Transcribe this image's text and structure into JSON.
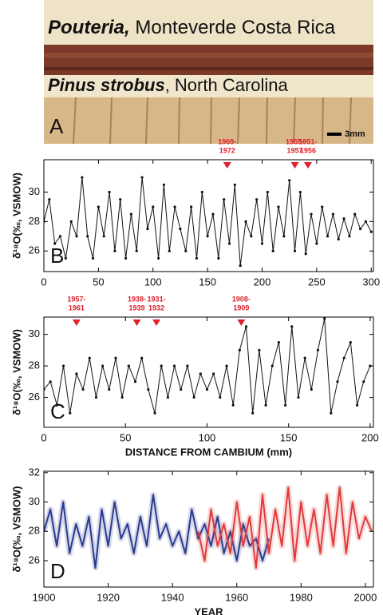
{
  "photo": {
    "label": "A",
    "species_1": "Pouteria,",
    "location_1": " Monteverde Costa Rica",
    "species_2": "Pinus strobus",
    "location_2": ", North Carolina",
    "scale": "3mm"
  },
  "chart_data": [
    {
      "type": "line",
      "panel_label": "B",
      "y_label": "δ¹⁸O(‰, VSMOW)",
      "xlim": [
        0,
        302
      ],
      "ylim": [
        24.6,
        32.2
      ],
      "xticks": [
        0,
        50,
        100,
        150,
        200,
        250,
        300
      ],
      "yticks": [
        26,
        28,
        30
      ],
      "annotations": [
        {
          "text": [
            "1969-",
            "1972"
          ],
          "x": 168,
          "color": "#e0202a"
        },
        {
          "text": [
            "1955-",
            "1957"
          ],
          "x": 230,
          "color": "#e0202a"
        },
        {
          "text": [
            "1951-",
            "1956"
          ],
          "x": 242,
          "color": "#e0202a"
        }
      ],
      "series": [
        {
          "color": "#111111",
          "markers": true,
          "x": [
            0,
            5,
            10,
            15,
            20,
            25,
            30,
            35,
            40,
            45,
            50,
            55,
            60,
            65,
            70,
            75,
            80,
            85,
            90,
            95,
            100,
            105,
            110,
            115,
            120,
            125,
            130,
            135,
            140,
            145,
            150,
            155,
            160,
            165,
            170,
            175,
            180,
            185,
            190,
            195,
            200,
            205,
            210,
            215,
            220,
            225,
            230,
            235,
            240,
            245,
            250,
            255,
            260,
            265,
            270,
            275,
            280,
            285,
            290,
            295,
            300
          ],
          "values": [
            28,
            29.5,
            26.5,
            27,
            25.5,
            28,
            27,
            31,
            27,
            25.5,
            29,
            27,
            30,
            26,
            29.5,
            25.5,
            28.5,
            26,
            31,
            27.5,
            29,
            25.5,
            30.5,
            26,
            29,
            27.5,
            26,
            29,
            25.5,
            30,
            27,
            28.5,
            25.5,
            29.5,
            26.5,
            30.5,
            25,
            28,
            27,
            29.5,
            26.5,
            30,
            26,
            29,
            27,
            30.8,
            26,
            30,
            25.8,
            28.5,
            26.5,
            29,
            27,
            28.5,
            26.8,
            28.2,
            27,
            28.5,
            27.5,
            28,
            27.3
          ]
        }
      ]
    },
    {
      "type": "line",
      "panel_label": "C",
      "y_label": "δ¹⁸O(‰, VSMOW)",
      "x_label": "DISTANCE FROM CAMBIUM (mm)",
      "xlim": [
        0,
        202
      ],
      "ylim": [
        24.1,
        31.1
      ],
      "xticks": [
        0,
        50,
        100,
        150,
        200
      ],
      "yticks": [
        26,
        28,
        30
      ],
      "annotations": [
        {
          "text": [
            "1957-",
            "1961"
          ],
          "x": 20,
          "color": "#e0202a"
        },
        {
          "text": [
            "1938-",
            "1939"
          ],
          "x": 57,
          "color": "#e0202a"
        },
        {
          "text": [
            "1931-",
            "1932"
          ],
          "x": 69,
          "color": "#e0202a"
        },
        {
          "text": [
            "1908-",
            "1909"
          ],
          "x": 121,
          "color": "#e0202a"
        }
      ],
      "series": [
        {
          "color": "#111111",
          "markers": true,
          "x": [
            0,
            4,
            8,
            12,
            16,
            20,
            24,
            28,
            32,
            36,
            40,
            44,
            48,
            52,
            56,
            60,
            64,
            68,
            72,
            76,
            80,
            84,
            88,
            92,
            96,
            100,
            104,
            108,
            112,
            116,
            120,
            124,
            128,
            132,
            136,
            140,
            144,
            148,
            152,
            156,
            160,
            164,
            168,
            172,
            176,
            180,
            184,
            188,
            192,
            196,
            200
          ],
          "values": [
            26.5,
            27,
            25.5,
            28,
            25,
            27.5,
            26.5,
            28.5,
            26,
            28,
            26.5,
            28.5,
            26,
            28,
            27,
            28.5,
            26.5,
            25,
            28,
            26,
            28,
            26.5,
            28,
            26,
            27.5,
            26.5,
            27.5,
            26,
            28,
            25.5,
            29,
            30.5,
            25,
            29,
            25.5,
            28,
            29.5,
            25.5,
            30.5,
            26,
            28.5,
            26.5,
            29,
            31,
            25,
            27,
            28.5,
            29.5,
            25.5,
            27,
            28
          ]
        }
      ]
    },
    {
      "type": "line",
      "panel_label": "D",
      "y_label": "δ¹⁸O(‰, VSMOW)",
      "x_label": "YEAR",
      "xlim": [
        1900,
        2002.5
      ],
      "ylim": [
        24.2,
        32.1
      ],
      "xticks": [
        1900,
        1920,
        1940,
        1960,
        1980,
        2000
      ],
      "yticks": [
        26,
        28,
        30,
        32
      ],
      "series": [
        {
          "color": "#2b3a8f",
          "markers": false,
          "x": [
            1900,
            1902,
            1904,
            1906,
            1908,
            1910,
            1912,
            1914,
            1916,
            1918,
            1920,
            1922,
            1924,
            1926,
            1928,
            1930,
            1932,
            1934,
            1936,
            1938,
            1940,
            1942,
            1944,
            1946,
            1948,
            1950,
            1952,
            1954,
            1956,
            1958,
            1960,
            1962,
            1964,
            1966,
            1968,
            1970
          ],
          "values": [
            28,
            29.5,
            27,
            30,
            26.5,
            28.5,
            27,
            29,
            25.5,
            29.5,
            27,
            30,
            27.5,
            28.5,
            26.5,
            29,
            27,
            30.5,
            27.5,
            28.5,
            27,
            28,
            26.5,
            29.5,
            27.5,
            28.5,
            27,
            29,
            26.5,
            28,
            26,
            28.5,
            27,
            27.5,
            26,
            27.5
          ]
        },
        {
          "color": "#e03a3a",
          "markers": false,
          "x": [
            1948,
            1950,
            1952,
            1954,
            1956,
            1958,
            1960,
            1962,
            1964,
            1966,
            1968,
            1970,
            1972,
            1974,
            1976,
            1978,
            1980,
            1982,
            1984,
            1986,
            1988,
            1990,
            1992,
            1994,
            1996,
            1998,
            2000,
            2002
          ],
          "values": [
            28,
            26,
            29.5,
            27,
            28.5,
            26.5,
            30,
            27,
            29,
            25.5,
            30.5,
            26.5,
            29.5,
            27,
            31,
            26,
            30,
            27,
            29.5,
            26.5,
            30.5,
            27,
            31,
            26.5,
            30,
            27.5,
            29,
            28
          ]
        }
      ]
    }
  ]
}
